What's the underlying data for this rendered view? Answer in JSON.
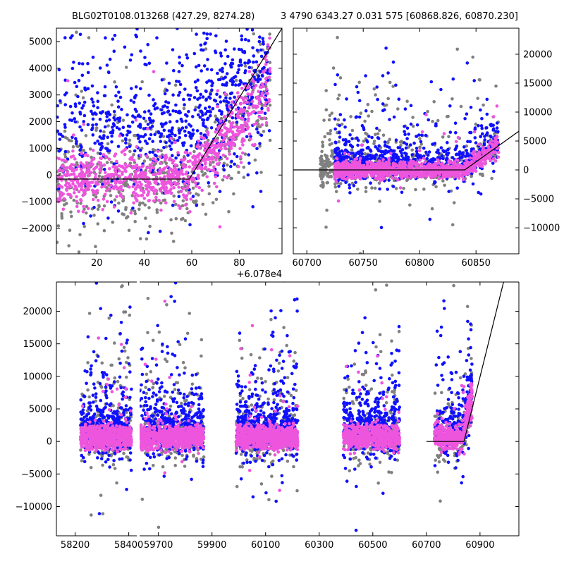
{
  "header": {
    "left_title": "BLG02T0108.013268 (427.29, 8274.28)",
    "right_title": "3 4790 6343.27 0.031 575 [60868.826, 60870.230]"
  },
  "colors": {
    "gray": "#808080",
    "blue": "#1010ff",
    "pink": "#ee55dd",
    "line": "#000000",
    "axis": "#000000"
  },
  "chart_data": [
    {
      "type": "scatter",
      "name": "folded-phase",
      "xlim": [
        3,
        98
      ],
      "ylim": [
        -2950,
        5500
      ],
      "xticks": [
        20,
        40,
        60,
        80
      ],
      "xtick_labels": [
        "20",
        "40",
        "60",
        "80"
      ],
      "x_offset_label": "+6.078e4",
      "yticks": [
        -2000,
        -1000,
        0,
        1000,
        2000,
        3000,
        4000,
        5000
      ],
      "ytick_labels": [
        "−2000",
        "−1000",
        "0",
        "1000",
        "2000",
        "3000",
        "4000",
        "5000"
      ],
      "yaxis_side": "left",
      "model": [
        [
          3,
          -150
        ],
        [
          59,
          -150
        ],
        [
          98,
          5500
        ]
      ],
      "seed": 11,
      "series": [
        {
          "name": "gray",
          "color": "#808080",
          "n": 550,
          "x_range": [
            3,
            93
          ],
          "x_skew": 1,
          "y_base": -400,
          "y_base_sd": 900,
          "tail_frac": 0.35,
          "tail_scale": 1600,
          "ramp": {
            "x0": 59,
            "slope": 100
          }
        },
        {
          "name": "blue",
          "color": "#1010ff",
          "n": 800,
          "x_range": [
            3,
            93
          ],
          "x_skew": 0.8,
          "y_base": 1400,
          "y_base_sd": 1400,
          "tail_frac": 0.6,
          "tail_scale": 1600,
          "ramp": {
            "x0": 59,
            "slope": 60
          }
        },
        {
          "name": "pink",
          "color": "#ee55dd",
          "n": 900,
          "x_range": [
            3,
            93
          ],
          "x_skew": 1,
          "y_base": -150,
          "y_base_sd": 450,
          "tail_frac": 0.08,
          "tail_scale": 900,
          "ramp": {
            "x0": 59,
            "slope": 100
          }
        }
      ]
    },
    {
      "type": "scatter",
      "name": "late-window",
      "xlim": [
        60688,
        60888
      ],
      "ylim": [
        -14500,
        24500
      ],
      "xticks": [
        60700,
        60750,
        60800,
        60850
      ],
      "xtick_labels": [
        "60700",
        "60750",
        "60800",
        "60850"
      ],
      "yticks": [
        -10000,
        -5000,
        0,
        5000,
        10000,
        15000,
        20000
      ],
      "ytick_labels": [
        "−10000",
        "−5000",
        "0",
        "5000",
        "10000",
        "15000",
        "20000"
      ],
      "yaxis_side": "right",
      "model": [
        [
          60688,
          0
        ],
        [
          60840,
          0
        ],
        [
          60888,
          6700
        ]
      ],
      "seed": 23,
      "series": [
        {
          "name": "gray",
          "color": "#808080",
          "n": 650,
          "x_range": [
            60712,
            60870
          ],
          "x_skew": 1.3,
          "y_base": 200,
          "y_base_sd": 1500,
          "tail_frac": 0.35,
          "tail_scale": 5500,
          "ramp": {
            "x0": 60840,
            "slope": 140
          }
        },
        {
          "name": "blue",
          "color": "#1010ff",
          "n": 800,
          "x_range": [
            60725,
            60870
          ],
          "x_skew": 1.3,
          "y_base": 900,
          "y_base_sd": 1400,
          "tail_frac": 0.4,
          "tail_scale": 4000,
          "ramp": {
            "x0": 60840,
            "slope": 140
          }
        },
        {
          "name": "pink",
          "color": "#ee55dd",
          "n": 1100,
          "x_range": [
            60725,
            60870
          ],
          "x_skew": 1.3,
          "y_base": 0,
          "y_base_sd": 700,
          "tail_frac": 0.05,
          "tail_scale": 2500,
          "ramp": {
            "x0": 60840,
            "slope": 140
          }
        }
      ]
    },
    {
      "type": "scatter",
      "name": "full-lightcurve",
      "ylim": [
        -14500,
        24500
      ],
      "yticks": [
        -10000,
        -5000,
        0,
        5000,
        10000,
        15000,
        20000
      ],
      "ytick_labels": [
        "−10000",
        "−5000",
        "0",
        "5000",
        "10000",
        "15000",
        "20000"
      ],
      "yaxis_side": "left",
      "segments": [
        {
          "xlim": [
            58130,
            58430
          ],
          "xticks": [
            58200,
            58400
          ],
          "xtick_labels": [
            "58200",
            "58400"
          ]
        },
        {
          "xlim": [
            59630,
            61045
          ],
          "xticks": [
            59700,
            59900,
            60100,
            60300,
            60500,
            60700,
            60900
          ],
          "xtick_labels": [
            "59700",
            "59900",
            "60100",
            "60300",
            "60500",
            "60700",
            "60900"
          ]
        }
      ],
      "model": [
        [
          60700,
          0
        ],
        [
          60840,
          0
        ],
        [
          60988,
          24500
        ]
      ],
      "seed": 37,
      "seasons": [
        {
          "x_range": [
            58220,
            58410
          ],
          "weight": 0.85
        },
        {
          "x_range": [
            59620,
            59870
          ],
          "weight": 1.0
        },
        {
          "x_range": [
            59990,
            60220
          ],
          "weight": 1.1
        },
        {
          "x_range": [
            60390,
            60600
          ],
          "weight": 0.9
        },
        {
          "x_range": [
            60730,
            60870
          ],
          "weight": 0.6,
          "ramp": {
            "x0": 60835,
            "slope": 180
          }
        }
      ],
      "series": [
        {
          "name": "gray",
          "color": "#808080",
          "n": 1300,
          "y_base": 500,
          "y_base_sd": 1500,
          "tail_frac": 0.4,
          "tail_scale": 6000
        },
        {
          "name": "blue",
          "color": "#1010ff",
          "n": 2000,
          "y_base": 1800,
          "y_base_sd": 2000,
          "tail_frac": 0.45,
          "tail_scale": 5000
        },
        {
          "name": "pink",
          "color": "#ee55dd",
          "n": 3200,
          "y_base": 700,
          "y_base_sd": 900,
          "tail_frac": 0.04,
          "tail_scale": 4000
        }
      ]
    }
  ]
}
